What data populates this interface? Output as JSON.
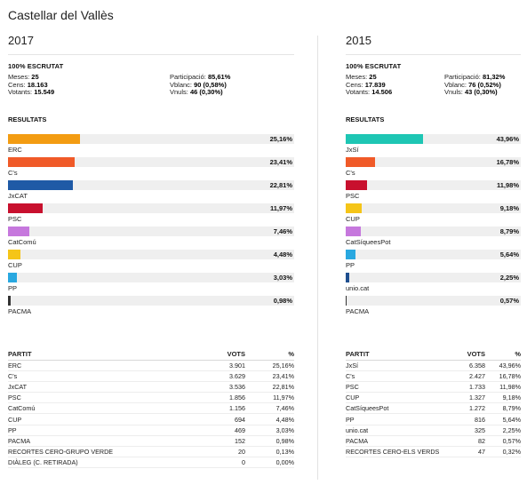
{
  "town": "Castellar del Vallès",
  "elections": [
    {
      "year": "2017",
      "scrutat": "100% ESCRUTAT",
      "stats_left": [
        {
          "label": "Meses:",
          "value": "25"
        },
        {
          "label": "Cens:",
          "value": "18.163"
        },
        {
          "label": "Votants:",
          "value": "15.549"
        }
      ],
      "stats_right": [
        {
          "label": "Participació:",
          "value": "85,61%"
        },
        {
          "label": "Vblanc:",
          "value": "90 (0,58%)"
        },
        {
          "label": "Vnuls:",
          "value": "46 (0,30%)"
        }
      ],
      "resultats_title": "RESULTATS",
      "bars": [
        {
          "name": "ERC",
          "pct_label": "25,16%",
          "pct": 25.16,
          "color": "#f39c12"
        },
        {
          "name": "C's",
          "pct_label": "23,41%",
          "pct": 23.41,
          "color": "#f05a28"
        },
        {
          "name": "JxCAT",
          "pct_label": "22,81%",
          "pct": 22.81,
          "color": "#1f5aa6"
        },
        {
          "name": "PSC",
          "pct_label": "11,97%",
          "pct": 11.97,
          "color": "#c8102e"
        },
        {
          "name": "CatComú",
          "pct_label": "7,46%",
          "pct": 7.46,
          "color": "#c678dd"
        },
        {
          "name": "CUP",
          "pct_label": "4,48%",
          "pct": 4.48,
          "color": "#f5c518"
        },
        {
          "name": "PP",
          "pct_label": "3,03%",
          "pct": 3.03,
          "color": "#29a8e0"
        },
        {
          "name": "PACMA",
          "pct_label": "0,98%",
          "pct": 0.98,
          "color": "#333333"
        }
      ],
      "table": {
        "headers": [
          "PARTIT",
          "VOTS",
          "%"
        ],
        "rows": [
          [
            "ERC",
            "3.901",
            "25,16%"
          ],
          [
            "C's",
            "3.629",
            "23,41%"
          ],
          [
            "JxCAT",
            "3.536",
            "22,81%"
          ],
          [
            "PSC",
            "1.856",
            "11,97%"
          ],
          [
            "CatComú",
            "1.156",
            "7,46%"
          ],
          [
            "CUP",
            "694",
            "4,48%"
          ],
          [
            "PP",
            "469",
            "3,03%"
          ],
          [
            "PACMA",
            "152",
            "0,98%"
          ],
          [
            "RECORTES CERO-GRUPO VERDE",
            "20",
            "0,13%"
          ],
          [
            "DIÀLEG (C. RETIRADA)",
            "0",
            "0,00%"
          ]
        ]
      }
    },
    {
      "year": "2015",
      "scrutat": "100% ESCRUTAT",
      "stats_left": [
        {
          "label": "Meses:",
          "value": "25"
        },
        {
          "label": "Cens:",
          "value": "17.839"
        },
        {
          "label": "Votants:",
          "value": "14.506"
        }
      ],
      "stats_right": [
        {
          "label": "Participació:",
          "value": "81,32%"
        },
        {
          "label": "Vblanc:",
          "value": "76 (0,52%)"
        },
        {
          "label": "Vnuls:",
          "value": "43 (0,30%)"
        }
      ],
      "resultats_title": "RESULTATS",
      "bars": [
        {
          "name": "JxSí",
          "pct_label": "43,96%",
          "pct": 43.96,
          "color": "#1ec6b4"
        },
        {
          "name": "C's",
          "pct_label": "16,78%",
          "pct": 16.78,
          "color": "#f05a28"
        },
        {
          "name": "PSC",
          "pct_label": "11,98%",
          "pct": 11.98,
          "color": "#c8102e"
        },
        {
          "name": "CUP",
          "pct_label": "9,18%",
          "pct": 9.18,
          "color": "#f5c518"
        },
        {
          "name": "CatSíqueesPot",
          "pct_label": "8,79%",
          "pct": 8.79,
          "color": "#c678dd"
        },
        {
          "name": "PP",
          "pct_label": "5,64%",
          "pct": 5.64,
          "color": "#29a8e0"
        },
        {
          "name": "unio.cat",
          "pct_label": "2,25%",
          "pct": 2.25,
          "color": "#1f4f8f"
        },
        {
          "name": "PACMA",
          "pct_label": "0,57%",
          "pct": 0.57,
          "color": "#333333"
        }
      ],
      "table": {
        "headers": [
          "PARTIT",
          "VOTS",
          "%"
        ],
        "rows": [
          [
            "JxSí",
            "6.358",
            "43,96%"
          ],
          [
            "C's",
            "2.427",
            "16,78%"
          ],
          [
            "PSC",
            "1.733",
            "11,98%"
          ],
          [
            "CUP",
            "1.327",
            "9,18%"
          ],
          [
            "CatSíqueesPot",
            "1.272",
            "8,79%"
          ],
          [
            "PP",
            "816",
            "5,64%"
          ],
          [
            "unio.cat",
            "325",
            "2,25%"
          ],
          [
            "PACMA",
            "82",
            "0,57%"
          ],
          [
            "RECORTES CERO-ELS VERDS",
            "47",
            "0,32%"
          ]
        ]
      }
    }
  ]
}
